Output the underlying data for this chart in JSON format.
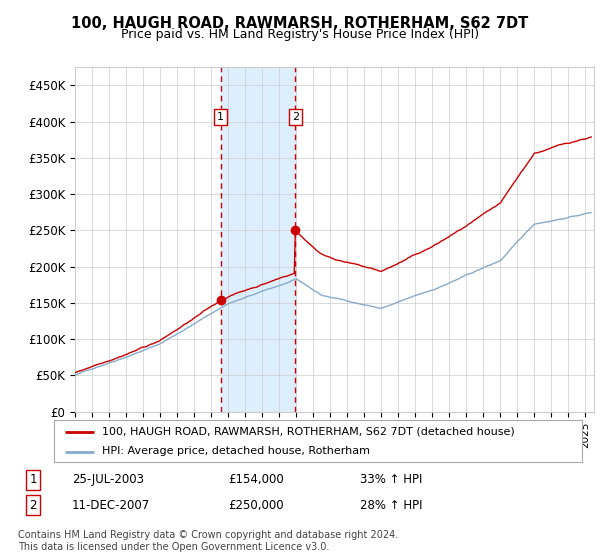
{
  "title1": "100, HAUGH ROAD, RAWMARSH, ROTHERHAM, S62 7DT",
  "title2": "Price paid vs. HM Land Registry's House Price Index (HPI)",
  "ylabel_ticks": [
    "£0",
    "£50K",
    "£100K",
    "£150K",
    "£200K",
    "£250K",
    "£300K",
    "£350K",
    "£400K",
    "£450K"
  ],
  "ylim": [
    0,
    475000
  ],
  "xlim_start": 1995.0,
  "xlim_end": 2025.5,
  "transaction1": {
    "date_num": 2003.56,
    "price": 154000,
    "label": "1"
  },
  "transaction2": {
    "date_num": 2007.94,
    "price": 250000,
    "label": "2"
  },
  "legend_line1": "100, HAUGH ROAD, RAWMARSH, ROTHERHAM, S62 7DT (detached house)",
  "legend_line2": "HPI: Average price, detached house, Rotherham",
  "table_row1": [
    "1",
    "25-JUL-2003",
    "£154,000",
    "33% ↑ HPI"
  ],
  "table_row2": [
    "2",
    "11-DEC-2007",
    "£250,000",
    "28% ↑ HPI"
  ],
  "footer1": "Contains HM Land Registry data © Crown copyright and database right 2024.",
  "footer2": "This data is licensed under the Open Government Licence v3.0.",
  "line_color_red": "#cc0000",
  "line_color_blue": "#88aacc",
  "shade_color": "#ddeeff",
  "dashed_color": "#cc0000",
  "grid_color": "#cccccc",
  "background_color": "#ffffff"
}
